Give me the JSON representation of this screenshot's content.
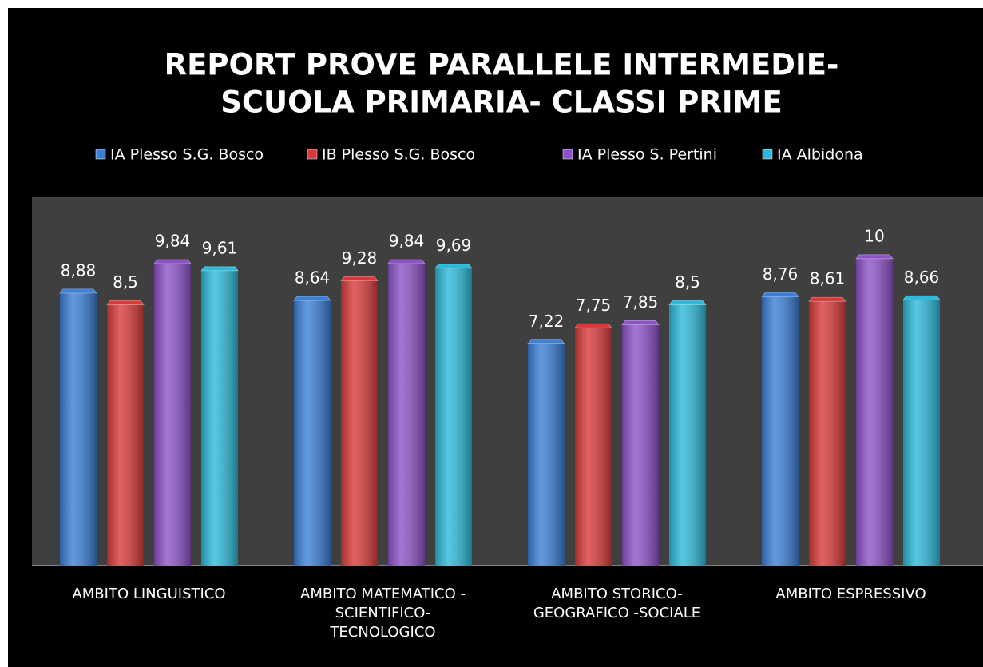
{
  "chart_data": {
    "type": "bar",
    "title": [
      "REPORT PROVE PARALLELE INTERMEDIE-",
      "SCUOLA PRIMARIA-  CLASSI PRIME"
    ],
    "categories": [
      [
        "AMBITO LINGUISTICO"
      ],
      [
        "AMBITO MATEMATICO -",
        "SCIENTIFICO-",
        "TECNOLOGICO"
      ],
      [
        "AMBITO STORICO-",
        "GEOGRAFICO -SOCIALE"
      ],
      [
        "AMBITO ESPRESSIVO"
      ]
    ],
    "series": [
      {
        "name": "IA Plesso S.G. Bosco",
        "color": "#3b7fd6",
        "values": [
          8.88,
          8.64,
          7.22,
          8.76
        ],
        "value_labels": [
          "8,88",
          "8,64",
          "7,22",
          "8,76"
        ]
      },
      {
        "name": "IB Plesso S.G. Bosco",
        "color": "#d83a3a",
        "values": [
          8.5,
          9.28,
          7.75,
          8.61
        ],
        "value_labels": [
          "8,5",
          "9,28",
          "7,75",
          "8,61"
        ]
      },
      {
        "name": "IA Plesso  S. Pertini",
        "color": "#8d52c8",
        "values": [
          9.84,
          9.84,
          7.85,
          10
        ],
        "value_labels": [
          "9,84",
          "9,84",
          "7,85",
          "10"
        ]
      },
      {
        "name": "IA  Albidona",
        "color": "#2db9d9",
        "values": [
          9.61,
          9.69,
          8.5,
          8.66
        ],
        "value_labels": [
          "9,61",
          "9,69",
          "8,5",
          "8,66"
        ]
      }
    ],
    "ylim": [
      0,
      12
    ],
    "legend": "top"
  }
}
